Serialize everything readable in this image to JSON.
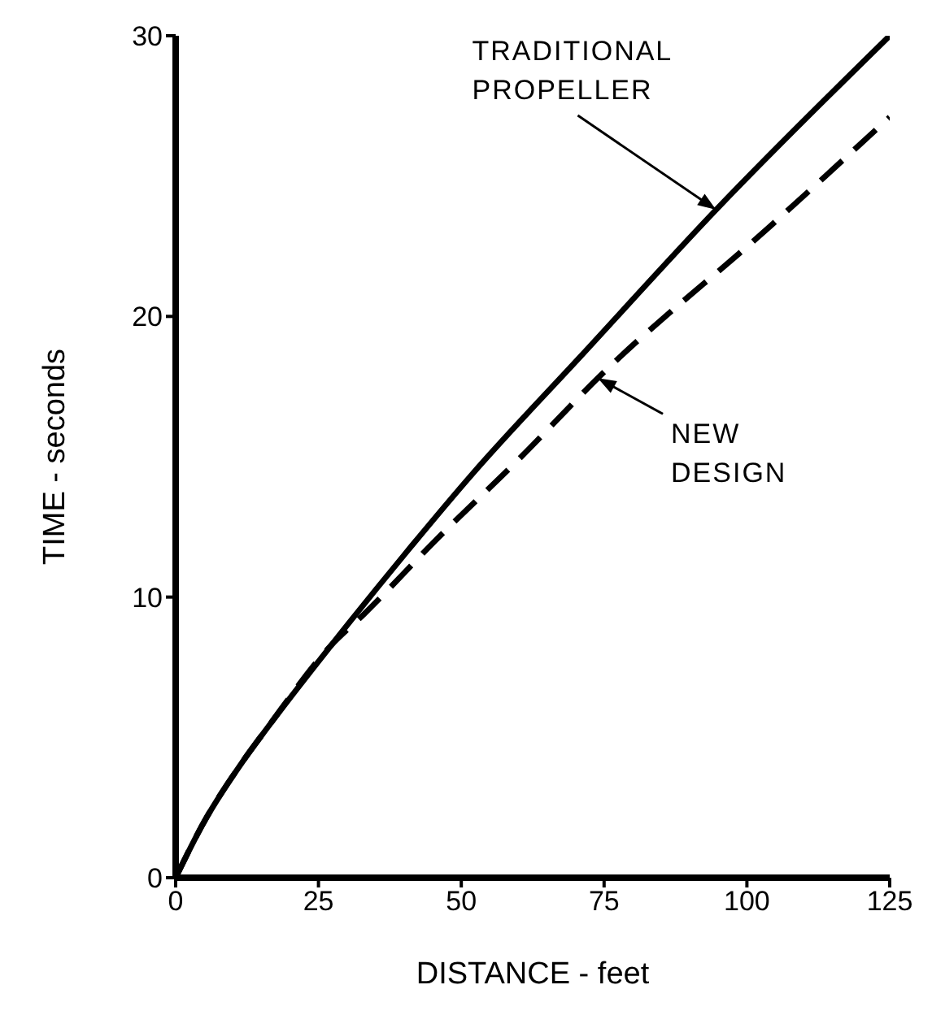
{
  "chart_data": {
    "type": "line",
    "xlabel": "DISTANCE  -  feet",
    "ylabel": "TIME  -  seconds",
    "xlim": [
      0,
      125
    ],
    "xticks": [
      0,
      25,
      50,
      75,
      100,
      125
    ],
    "ylim": [
      0,
      30
    ],
    "yticks": [
      0,
      10,
      20,
      30
    ],
    "series": [
      {
        "color": "#000000",
        "line_style": "solid",
        "x": [
          0,
          5,
          11.6,
          15.9,
          27.3,
          40,
          52,
          71,
          94.6,
          125
        ],
        "values": [
          0,
          2.0,
          4.1,
          5.3,
          8.3,
          11.5,
          14.4,
          18.6,
          23.8,
          30
        ]
      },
      {
        "color": "#000000",
        "line_style": "dashed",
        "x": [
          0,
          5,
          11.6,
          15.9,
          27.3,
          33,
          45.4,
          60.5,
          73.9,
          104,
          125
        ],
        "values": [
          0,
          2.0,
          4.1,
          5.3,
          8.3,
          9.4,
          12.0,
          15.0,
          17.8,
          23.2,
          27.1
        ]
      }
    ],
    "annotations": [
      {
        "text": "TRADITIONAL PROPELLER",
        "x": 94.6,
        "y": 23.8
      },
      {
        "text": "NEW DESIGN",
        "x": 73.9,
        "y": 17.8
      }
    ]
  }
}
